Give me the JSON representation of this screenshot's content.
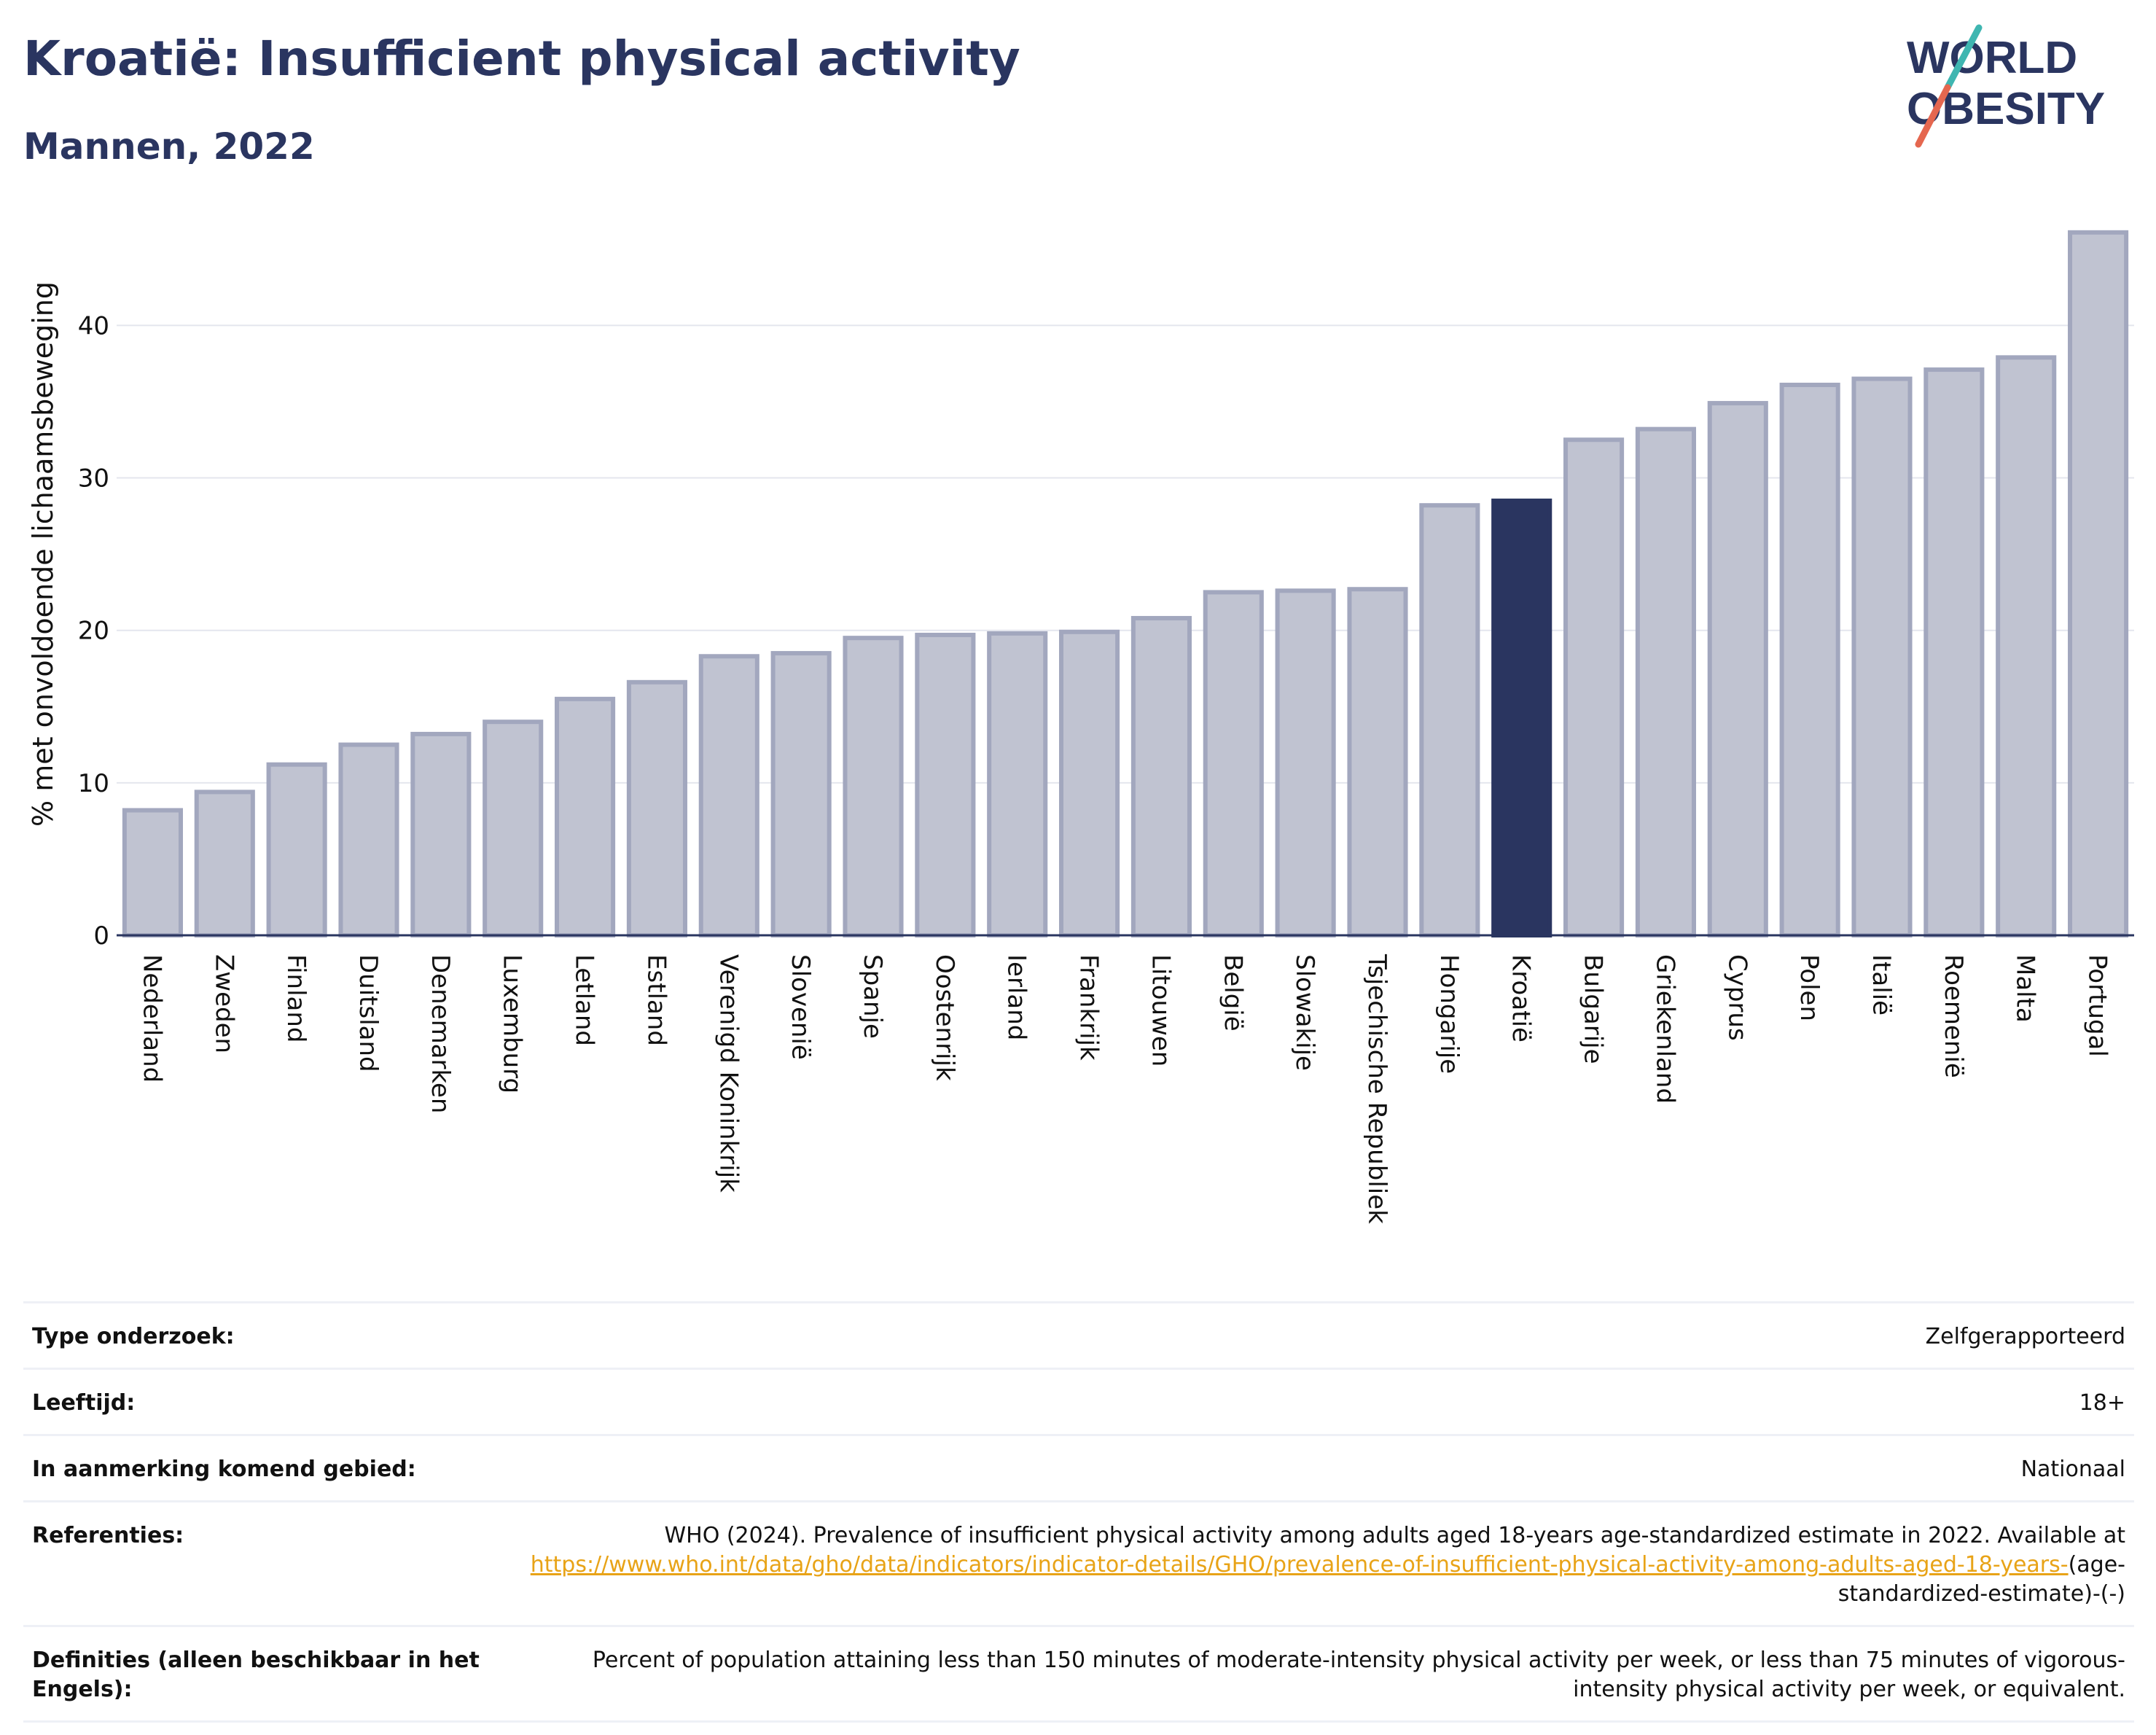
{
  "header": {
    "title": "Kroatië: Insufficient physical activity",
    "subtitle": "Mannen, 2022",
    "logo_line1": "WORLD",
    "logo_line2": "OBESITY"
  },
  "colors": {
    "bar": "#c0c3d1",
    "bar_border": "#a2a7be",
    "highlight": "#2a3560",
    "grid": "#e4e6ee",
    "axis": "#2a3560",
    "logo_teal": "#3fb6b1",
    "logo_red": "#e5674f",
    "link": "#e8a317"
  },
  "chart_data": {
    "type": "bar",
    "title": "",
    "xlabel": "",
    "ylabel": "% met onvoldoende lichaamsbeweging",
    "ylim": [
      0,
      47
    ],
    "yticks": [
      0,
      10,
      20,
      30,
      40
    ],
    "grid": true,
    "highlight": "Kroatië",
    "categories": [
      "Nederland",
      "Zweden",
      "Finland",
      "Duitsland",
      "Denemarken",
      "Luxemburg",
      "Letland",
      "Estland",
      "Verenigd Koninkrijk",
      "Slovenië",
      "Spanje",
      "Oostenrijk",
      "Ierland",
      "Frankrijk",
      "Litouwen",
      "België",
      "Slowakije",
      "Tsjechische Republiek",
      "Hongarije",
      "Kroatië",
      "Bulgarije",
      "Griekenland",
      "Cyprus",
      "Polen",
      "Italië",
      "Roemenië",
      "Malta",
      "Portugal"
    ],
    "values": [
      8.2,
      9.4,
      11.2,
      12.5,
      13.2,
      14.0,
      15.5,
      16.6,
      18.3,
      18.5,
      19.5,
      19.7,
      19.8,
      19.9,
      20.8,
      22.5,
      22.6,
      22.7,
      28.2,
      28.5,
      32.5,
      33.2,
      34.9,
      36.1,
      36.5,
      37.1,
      37.9,
      46.1
    ]
  },
  "info": {
    "rows": [
      {
        "label": "Type onderzoek:",
        "value": "Zelfgerapporteerd"
      },
      {
        "label": "Leeftijd:",
        "value": "18+"
      },
      {
        "label": "In aanmerking komend gebied:",
        "value": "Nationaal"
      }
    ],
    "references": {
      "label": "Referenties:",
      "text": "WHO (2024). Prevalence of insufficient physical activity among adults aged 18-years age-standardized estimate in 2022. Available at",
      "link": "https://www.who.int/data/gho/data/indicators/indicator-details/GHO/prevalence-of-insufficient-physical-activity-among-adults-aged-18-years-",
      "suffix": "(age-standardized-estimate)-(-)"
    },
    "definitions": {
      "label": "Definities (alleen beschikbaar in het Engels):",
      "value": "Percent of population attaining less than 150 minutes of moderate-intensity physical activity per week, or less than 75 minutes of vigorous-intensity physical activity per week, or equivalent."
    }
  }
}
